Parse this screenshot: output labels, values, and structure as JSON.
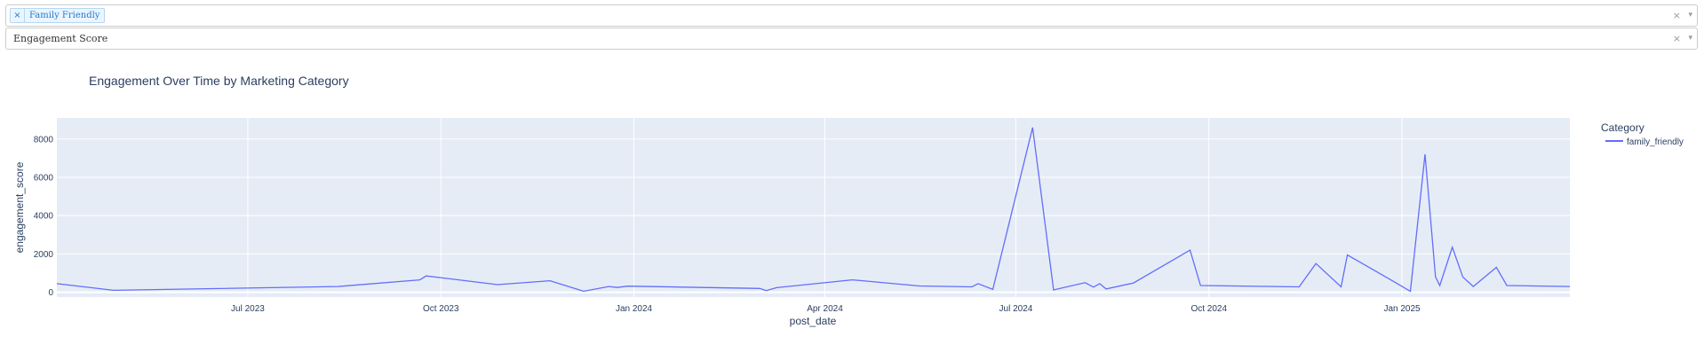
{
  "filters": {
    "category": {
      "selected": [
        "Family Friendly"
      ],
      "clear_icon": "×",
      "arrow_icon": "▾"
    },
    "metric": {
      "value": "Engagement Score",
      "clear_icon": "×",
      "arrow_icon": "▾"
    }
  },
  "colors": {
    "plot_bg": "#e5ecf6",
    "line": "#636efa",
    "text": "#2a3f5f",
    "grid": "#ffffff"
  },
  "chart_data": {
    "type": "line",
    "title": "Engagement Over Time by Marketing Category",
    "xlabel": "post_date",
    "ylabel": "engagement_score",
    "xlim": [
      "2023-04-01",
      "2025-03-22"
    ],
    "ylim": [
      -250,
      9100
    ],
    "x_ticks": [
      {
        "date": "2023-07-01",
        "label": "Jul 2023"
      },
      {
        "date": "2023-10-01",
        "label": "Oct 2023"
      },
      {
        "date": "2024-01-01",
        "label": "Jan 2024"
      },
      {
        "date": "2024-04-01",
        "label": "Apr 2024"
      },
      {
        "date": "2024-07-01",
        "label": "Jul 2024"
      },
      {
        "date": "2024-10-01",
        "label": "Oct 2024"
      },
      {
        "date": "2025-01-01",
        "label": "Jan 2025"
      }
    ],
    "y_ticks": [
      0,
      2000,
      4000,
      6000,
      8000
    ],
    "legend": {
      "title": "Category",
      "position": "right"
    },
    "series": [
      {
        "name": "family_friendly",
        "x": [
          "2023-04-01",
          "2023-04-28",
          "2023-08-13",
          "2023-09-21",
          "2023-09-24",
          "2023-10-28",
          "2023-11-22",
          "2023-12-08",
          "2023-12-20",
          "2023-12-24",
          "2023-12-29",
          "2024-03-01",
          "2024-03-04",
          "2024-03-09",
          "2024-04-14",
          "2024-04-19",
          "2024-05-16",
          "2024-06-10",
          "2024-06-13",
          "2024-06-20",
          "2024-07-09",
          "2024-07-19",
          "2024-08-03",
          "2024-08-07",
          "2024-08-10",
          "2024-08-13",
          "2024-08-26",
          "2024-09-22",
          "2024-09-27",
          "2024-11-13",
          "2024-11-21",
          "2024-12-03",
          "2024-12-06",
          "2024-12-29",
          "2025-01-05",
          "2025-01-12",
          "2025-01-17",
          "2025-01-19",
          "2025-01-25",
          "2025-01-30",
          "2025-02-04",
          "2025-02-15",
          "2025-02-20",
          "2025-03-22"
        ],
        "y": [
          450,
          100,
          300,
          650,
          850,
          400,
          600,
          50,
          300,
          250,
          320,
          200,
          90,
          240,
          650,
          600,
          330,
          280,
          450,
          150,
          8600,
          120,
          500,
          270,
          450,
          170,
          480,
          2200,
          350,
          280,
          1500,
          280,
          1950,
          500,
          50,
          7200,
          800,
          350,
          2350,
          800,
          300,
          1300,
          350,
          300
        ]
      }
    ]
  }
}
